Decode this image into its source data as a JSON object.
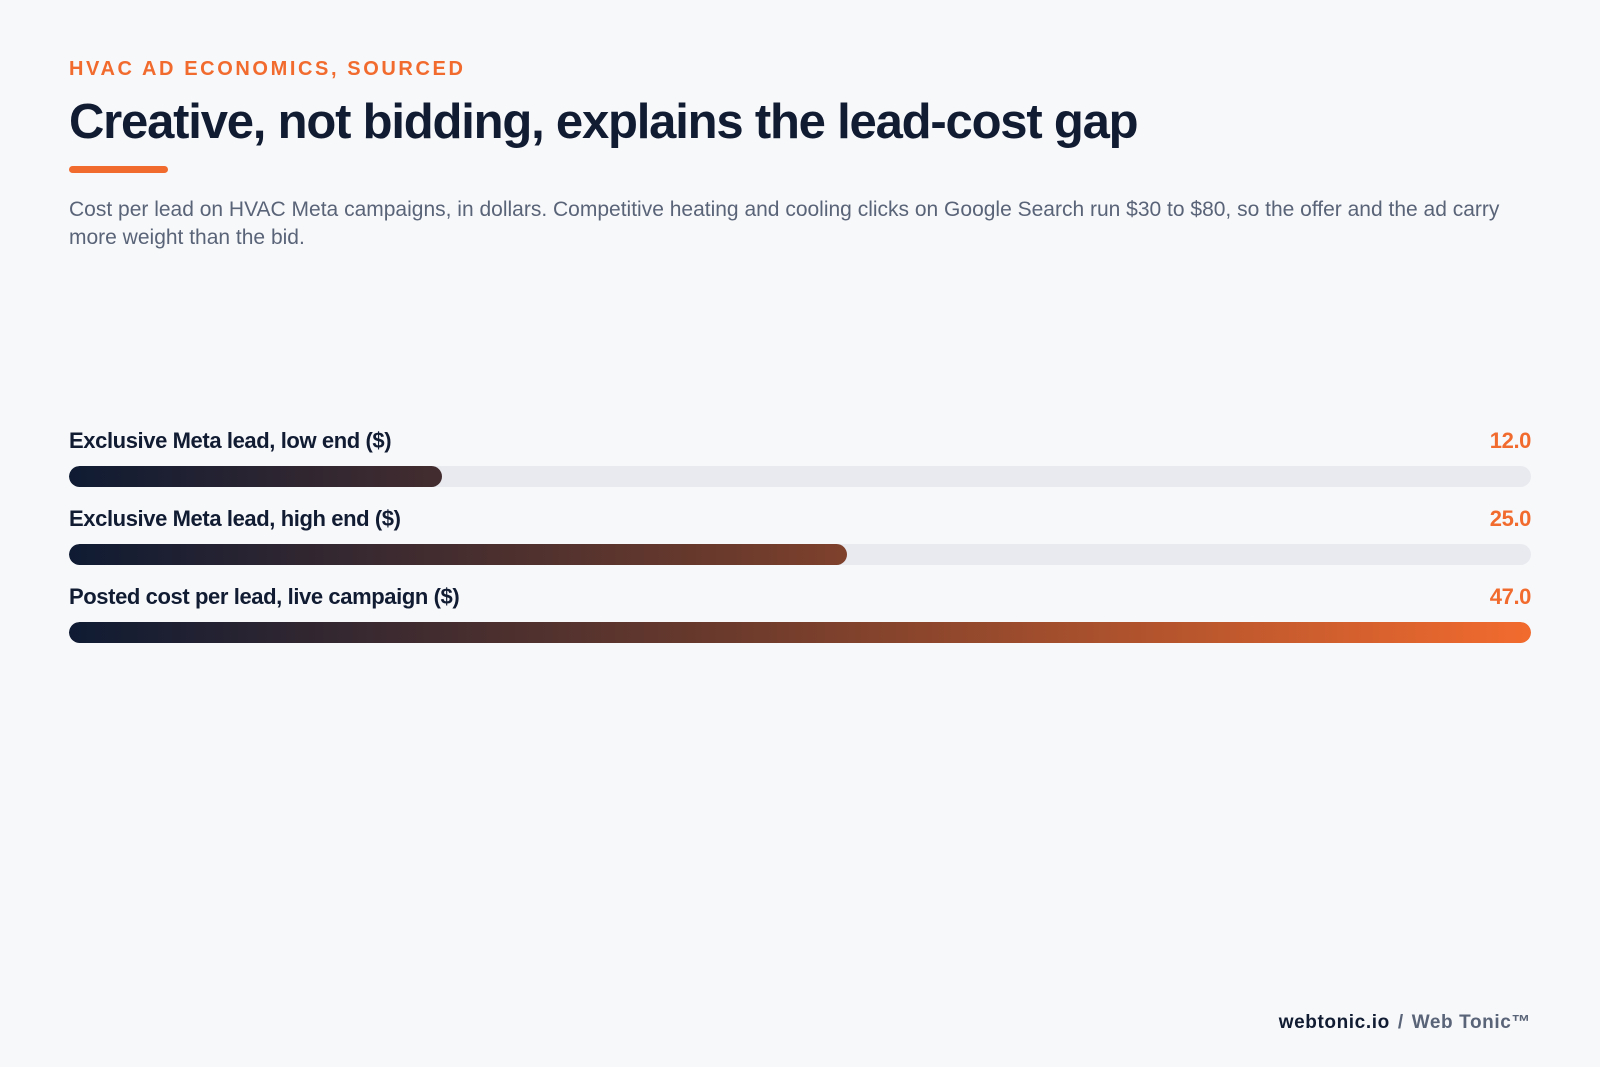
{
  "eyebrow": "HVAC AD ECONOMICS, SOURCED",
  "title": "Creative, not bidding, explains the lead-cost gap",
  "subtitle": "Cost per lead on HVAC Meta campaigns, in dollars. Competitive heating and cooling clicks on Google Search run $30 to $80, so the offer and the ad carry more weight than the bid.",
  "colors": {
    "accent": "#f26b2e",
    "ink": "#111c33",
    "track": "#e8eaef",
    "background": "#f7f8fa"
  },
  "chart_data": {
    "type": "bar",
    "orientation": "horizontal",
    "categories": [
      "Exclusive Meta lead, low end ($)",
      "Exclusive Meta lead, high end ($)",
      "Posted cost per lead, live campaign ($)"
    ],
    "values": [
      12.0,
      25.0,
      47.0
    ],
    "value_labels": [
      "12.0",
      "25.0",
      "47.0"
    ],
    "xlim": [
      0,
      47.0
    ],
    "grid": false,
    "legend": "none"
  },
  "footer": {
    "site": "webtonic.io",
    "separator": "/",
    "brand": "Web Tonic™"
  }
}
